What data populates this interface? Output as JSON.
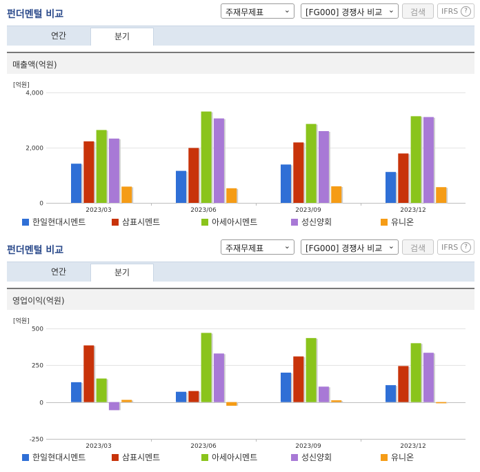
{
  "panels": [
    {
      "header": {
        "title": "펀더멘털 비교",
        "select1": "주재무제표",
        "select2": "[FG000] 경쟁사 비교",
        "search_label": "검색",
        "ifrs_label": "IFRS",
        "help_icon": "?"
      },
      "tabs": [
        {
          "label": "연간",
          "active": false
        },
        {
          "label": "분기",
          "active": true
        }
      ],
      "chart_title": "매출액(억원)",
      "unit_label": "[억원]"
    },
    {
      "header": {
        "title": "펀더멘털 비교",
        "select1": "주재무제표",
        "select2": "[FG000] 경쟁사 비교",
        "search_label": "검색",
        "ifrs_label": "IFRS",
        "help_icon": "?"
      },
      "tabs": [
        {
          "label": "연간",
          "active": false
        },
        {
          "label": "분기",
          "active": true
        }
      ],
      "chart_title": "영업이익(억원)",
      "unit_label": "[억원]"
    }
  ],
  "chart_data": [
    {
      "type": "bar",
      "title": "매출액(억원)",
      "ylabel": "[억원]",
      "categories": [
        "2023/03",
        "2023/06",
        "2023/09",
        "2023/12"
      ],
      "ylim": [
        0,
        4000
      ],
      "yticks": [
        0,
        2000,
        4000
      ],
      "ytick_labels": [
        "0",
        "2,000",
        "4,000"
      ],
      "series": [
        {
          "name": "한일현대시멘트",
          "color": "#2f6fd6",
          "values": [
            1420,
            1160,
            1390,
            1120
          ]
        },
        {
          "name": "삼표시멘트",
          "color": "#c8330a",
          "values": [
            2230,
            1990,
            2190,
            1790
          ]
        },
        {
          "name": "아세아시멘트",
          "color": "#8ac41c",
          "values": [
            2640,
            3310,
            2860,
            3140
          ]
        },
        {
          "name": "성신양회",
          "color": "#a879d6",
          "values": [
            2330,
            3060,
            2600,
            3110
          ]
        },
        {
          "name": "유니온",
          "color": "#f59c16",
          "values": [
            590,
            530,
            600,
            570
          ]
        }
      ]
    },
    {
      "type": "bar",
      "title": "영업이익(억원)",
      "ylabel": "[억원]",
      "categories": [
        "2023/03",
        "2023/06",
        "2023/09",
        "2023/12"
      ],
      "ylim": [
        -250,
        500
      ],
      "yticks": [
        -250,
        0,
        250,
        500
      ],
      "ytick_labels": [
        "-250",
        "0",
        "250",
        "500"
      ],
      "series": [
        {
          "name": "한일현대시멘트",
          "color": "#2f6fd6",
          "values": [
            135,
            70,
            200,
            115
          ]
        },
        {
          "name": "삼표시멘트",
          "color": "#c8330a",
          "values": [
            385,
            75,
            310,
            245
          ]
        },
        {
          "name": "아세아시멘트",
          "color": "#8ac41c",
          "values": [
            160,
            470,
            435,
            400
          ]
        },
        {
          "name": "성신양회",
          "color": "#a879d6",
          "values": [
            -55,
            330,
            105,
            335
          ]
        },
        {
          "name": "유니온",
          "color": "#f59c16",
          "values": [
            15,
            -25,
            12,
            -8
          ]
        }
      ]
    }
  ]
}
